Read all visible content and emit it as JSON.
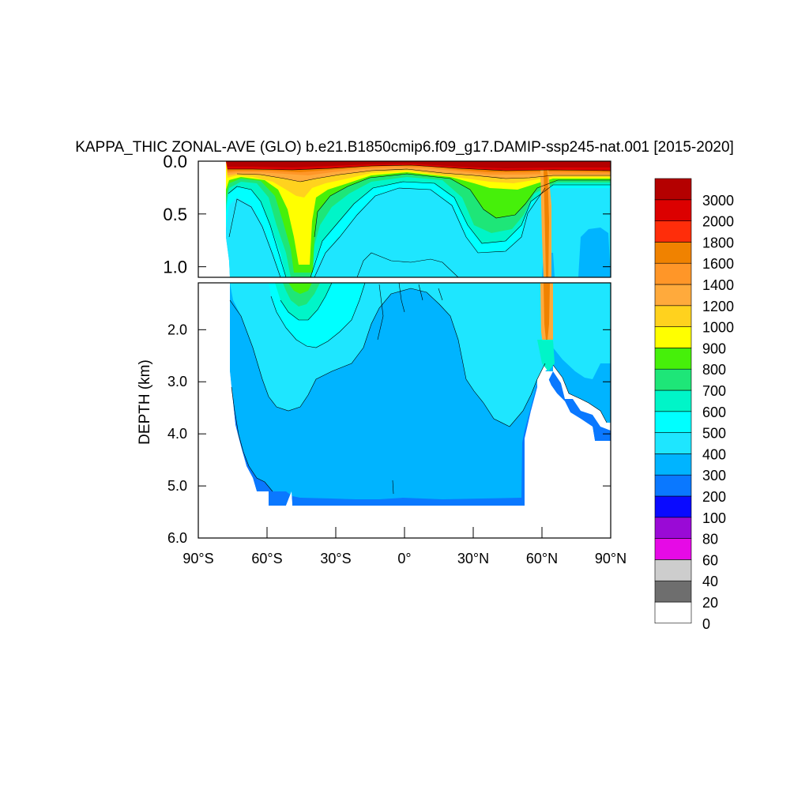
{
  "chart_data": {
    "type": "heatmap",
    "subtype": "filled-contour",
    "title": "KAPPA_THIC ZONAL-AVE (GLO) b.e21.B1850cmip6.f09_g17.DAMIP-ssp245-nat.001 [2015-2020]",
    "ylabel": "DEPTH (km)",
    "xlabel": "",
    "x_ticks": [
      "90°S",
      "60°S",
      "30°S",
      "0°",
      "30°N",
      "60°N",
      "90°N"
    ],
    "x_values_deg": [
      -90,
      -60,
      -30,
      0,
      30,
      60,
      90
    ],
    "xlim": [
      -90,
      90
    ],
    "panels": [
      {
        "name": "upper",
        "ylim": [
          0.0,
          1.1
        ],
        "y_ticks": [
          "0.0",
          "0.5",
          "1.0"
        ],
        "y_values": [
          0.0,
          0.5,
          1.0
        ]
      },
      {
        "name": "lower",
        "ylim": [
          1.1,
          6.0
        ],
        "y_ticks": [
          "2.0",
          "3.0",
          "4.0",
          "5.0",
          "6.0"
        ],
        "y_values": [
          2.0,
          3.0,
          4.0,
          5.0,
          6.0
        ]
      }
    ],
    "colorbar": {
      "labels": [
        "3000",
        "2000",
        "1800",
        "1600",
        "1400",
        "1200",
        "1000",
        "900",
        "800",
        "700",
        "600",
        "500",
        "400",
        "300",
        "200",
        "100",
        "80",
        "60",
        "40",
        "20",
        "0"
      ],
      "levels": [
        0,
        20,
        40,
        60,
        80,
        100,
        200,
        300,
        400,
        500,
        600,
        700,
        800,
        900,
        1000,
        1200,
        1400,
        1600,
        1800,
        2000,
        3000
      ],
      "colors_bottom_to_top": [
        "#ffffff",
        "#6e6e6e",
        "#cdcdcd",
        "#e60ae6",
        "#9a0ad6",
        "#0a0aff",
        "#0a78ff",
        "#00b4ff",
        "#1ee6ff",
        "#00ffff",
        "#00f5c8",
        "#1ee678",
        "#46f00a",
        "#ffff00",
        "#ffd21e",
        "#ffaa3c",
        "#ff9628",
        "#f08200",
        "#ff2d0a",
        "#dc0000",
        "#b40000"
      ]
    },
    "fill_colors": {
      "land": "#ffffff",
      "range_200_300": "#0a78ff",
      "range_300_400": "#00b4ff",
      "range_400_500": "#1ee6ff",
      "range_500_600": "#00ffff",
      "range_600_700": "#00f5c8",
      "range_700_800": "#1ee678",
      "range_800_900": "#46f00a",
      "range_900_1000": "#ffff00",
      "range_1000_1200": "#ffd21e",
      "range_1200_1400": "#ffaa3c",
      "range_1400_1600": "#ff9628",
      "range_1600_1800": "#f08200",
      "range_1800_2000": "#ff2d0a",
      "range_2000_3000": "#dc0000",
      "range_above_3000": "#b40000"
    },
    "grid": false,
    "legend": "right"
  }
}
